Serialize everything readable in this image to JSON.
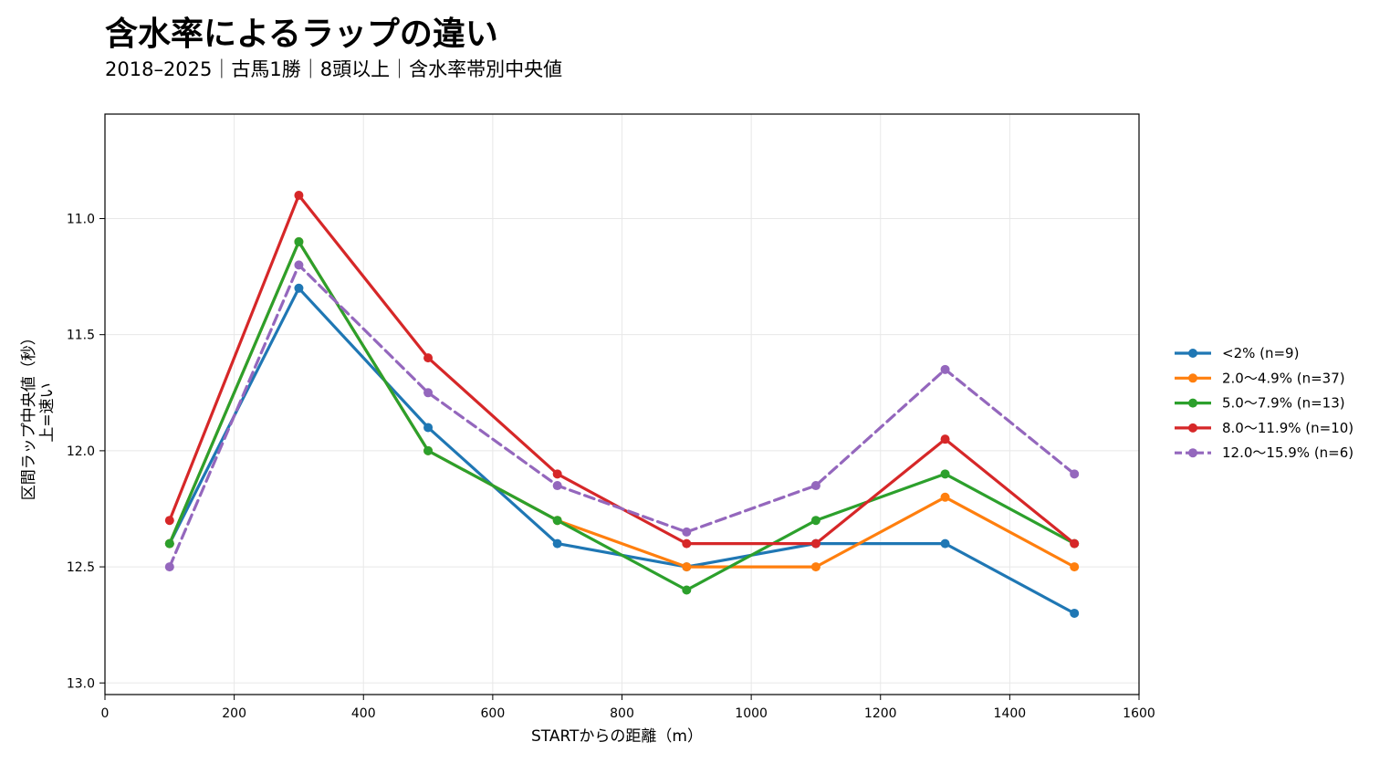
{
  "title": "含水率によるラップの違い",
  "subtitle": "2018–2025｜古馬1勝｜8頭以上｜含水率帯別中央値",
  "chart_data": {
    "type": "line",
    "xlabel": "STARTからの距離（m）",
    "ylabel_lines": [
      "区間ラップ中央値（秒）",
      "上=速い"
    ],
    "xlim": [
      0,
      1600
    ],
    "ylim": [
      13.05,
      10.55
    ],
    "y_inverted": true,
    "grid": true,
    "legend_position": "right",
    "x_ticks": [
      0,
      200,
      400,
      600,
      800,
      1000,
      1200,
      1400,
      1600
    ],
    "y_ticks": [
      11.0,
      11.5,
      12.0,
      12.5,
      13.0
    ],
    "y_tick_labels": [
      "11.0",
      "11.5",
      "12.0",
      "12.5",
      "13.0"
    ],
    "x": [
      100,
      300,
      500,
      700,
      900,
      1100,
      1300,
      1500
    ],
    "series": [
      {
        "name": "<2%  (n=9)",
        "color": "#1f77b4",
        "dash": false,
        "values": [
          12.4,
          11.3,
          11.9,
          12.4,
          12.5,
          12.4,
          12.4,
          12.7
        ]
      },
      {
        "name": "2.0～4.9%  (n=37)",
        "color": "#ff7f0e",
        "dash": false,
        "values": [
          12.4,
          11.1,
          12.0,
          12.3,
          12.5,
          12.5,
          12.2,
          12.5
        ]
      },
      {
        "name": "5.0～7.9%  (n=13)",
        "color": "#2ca02c",
        "dash": false,
        "values": [
          12.4,
          11.1,
          12.0,
          12.3,
          12.6,
          12.3,
          12.1,
          12.4
        ]
      },
      {
        "name": "8.0～11.9%  (n=10)",
        "color": "#d62728",
        "dash": false,
        "values": [
          12.3,
          10.9,
          11.6,
          12.1,
          12.4,
          12.4,
          11.95,
          12.4
        ]
      },
      {
        "name": "12.0～15.9%  (n=6)",
        "color": "#9467bd",
        "dash": true,
        "values": [
          12.5,
          11.2,
          11.75,
          12.15,
          12.35,
          12.15,
          11.65,
          12.1
        ]
      }
    ]
  }
}
